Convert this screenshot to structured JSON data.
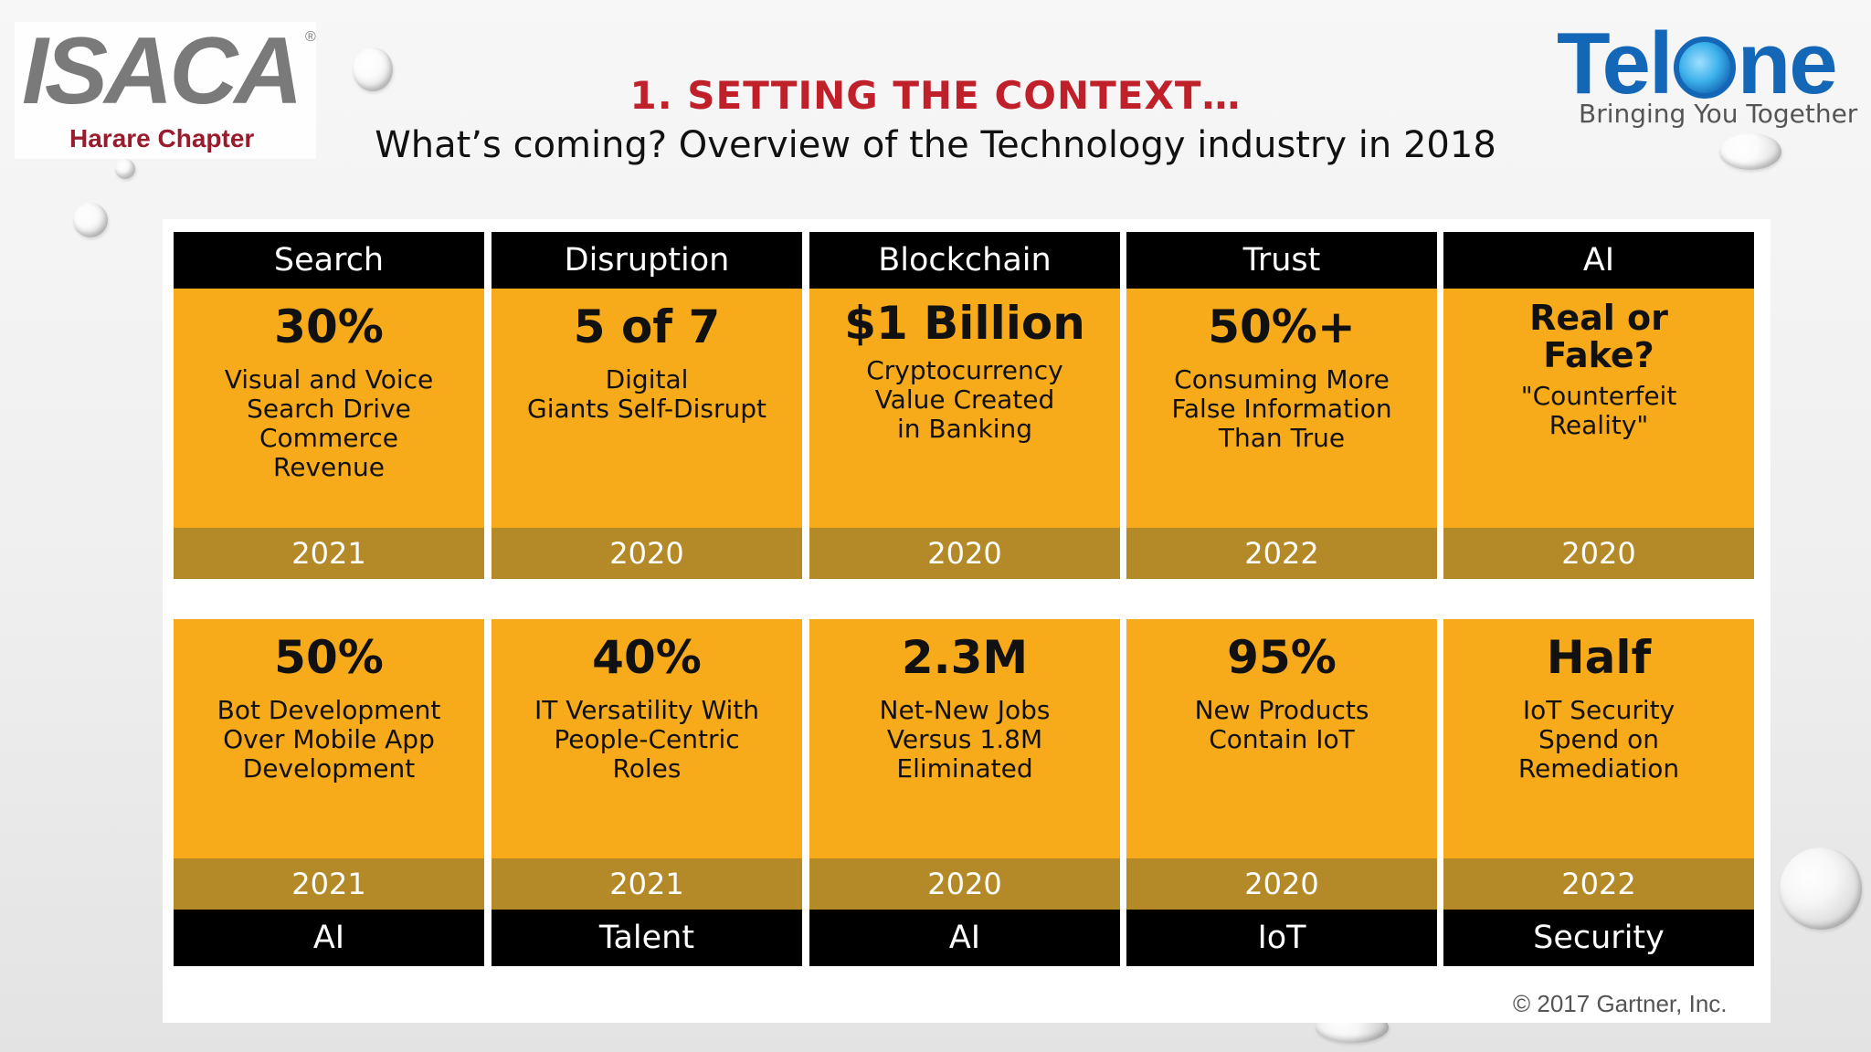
{
  "header": {
    "title": "1. SETTING THE CONTEXT…",
    "subtitle": "What’s coming? Overview of the Technology industry in 2018"
  },
  "logos": {
    "isaca": {
      "name": "ISACA",
      "registered": "®",
      "chapter": "Harare Chapter",
      "chapter_color": "#9a1b2d"
    },
    "telone": {
      "prefix": "Tel",
      "suffix": "ne",
      "tagline": "Bringing You Together",
      "brand_color": "#1467b6"
    }
  },
  "colors": {
    "title": "#c0202a",
    "card_body": "#f7ab1a",
    "card_year": "#b48a29",
    "card_header": "#000000"
  },
  "top_row": [
    {
      "category": "Search",
      "headline": "30%",
      "description": "Visual and Voice\nSearch Drive\nCommerce\nRevenue",
      "year": "2021"
    },
    {
      "category": "Disruption",
      "headline": "5 of 7",
      "description": "Digital\nGiants Self-Disrupt",
      "year": "2020"
    },
    {
      "category": "Blockchain",
      "headline": "$1 Billion",
      "description": "Cryptocurrency\nValue Created\nin Banking",
      "year": "2020"
    },
    {
      "category": "Trust",
      "headline": "50%+",
      "description": "Consuming More\nFalse Information\nThan True",
      "year": "2022"
    },
    {
      "category": "AI",
      "headline": "Real or\nFake?",
      "description": "\"Counterfeit\nReality\"",
      "year": "2020"
    }
  ],
  "bottom_row": [
    {
      "category": "AI",
      "headline": "50%",
      "description": "Bot Development\nOver Mobile App\nDevelopment",
      "year": "2021"
    },
    {
      "category": "Talent",
      "headline": "40%",
      "description": "IT Versatility With\nPeople-Centric\nRoles",
      "year": "2021"
    },
    {
      "category": "AI",
      "headline": "2.3M",
      "description": "Net-New Jobs\nVersus 1.8M\nEliminated",
      "year": "2020"
    },
    {
      "category": "IoT",
      "headline": "95%",
      "description": "New Products\nContain IoT",
      "year": "2020"
    },
    {
      "category": "Security",
      "headline": "Half",
      "description": "IoT Security\nSpend on\nRemediation",
      "year": "2022"
    }
  ],
  "footer": {
    "copyright": "© 2017 Gartner, Inc."
  }
}
